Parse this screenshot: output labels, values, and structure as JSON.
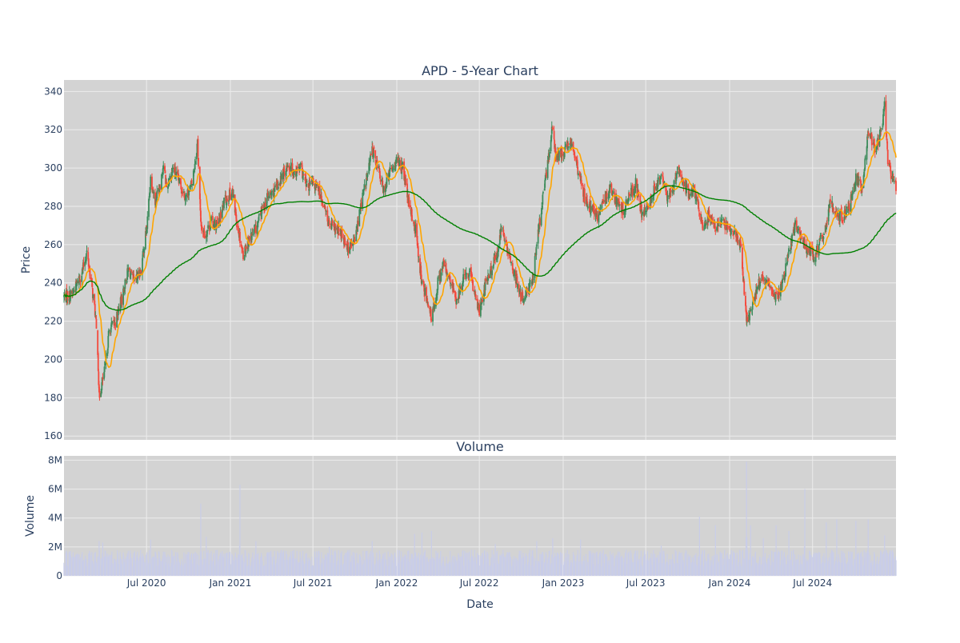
{
  "colors": {
    "plot_bg": "#d3d3d3",
    "grid": "#ececec",
    "up": "#3d8c5c",
    "down": "#f4493c",
    "ma_short": "#ffa500",
    "ma_long": "#008000",
    "volume": "#c9cde8",
    "text": "#2a3f5f"
  },
  "chart_data": [
    {
      "type": "candlestick",
      "title": "APD - 5-Year Chart",
      "ylabel": "Price",
      "ylim": [
        158,
        346
      ],
      "yticks": [
        160,
        180,
        200,
        220,
        240,
        260,
        280,
        300,
        320,
        340
      ],
      "x_range": [
        "2020-01-02",
        "2024-12-31"
      ],
      "grid": true,
      "series": [
        {
          "type": "candlestick",
          "style": "green up / red down"
        },
        {
          "type": "line",
          "color": "#ffa500"
        },
        {
          "type": "line",
          "color": "#008000"
        }
      ],
      "anchors": [
        [
          "2020-01-02",
          233
        ],
        [
          "2020-01-20",
          234
        ],
        [
          "2020-02-10",
          245
        ],
        [
          "2020-02-21",
          256
        ],
        [
          "2020-03-02",
          240
        ],
        [
          "2020-03-10",
          225
        ],
        [
          "2020-03-16",
          205
        ],
        [
          "2020-03-19",
          180
        ],
        [
          "2020-03-23",
          185
        ],
        [
          "2020-04-01",
          195
        ],
        [
          "2020-04-10",
          215
        ],
        [
          "2020-04-24",
          220
        ],
        [
          "2020-05-08",
          232
        ],
        [
          "2020-05-22",
          247
        ],
        [
          "2020-06-05",
          240
        ],
        [
          "2020-06-19",
          247
        ],
        [
          "2020-07-02",
          270
        ],
        [
          "2020-07-10",
          295
        ],
        [
          "2020-07-20",
          283
        ],
        [
          "2020-07-31",
          292
        ],
        [
          "2020-08-07",
          302
        ],
        [
          "2020-08-14",
          290
        ],
        [
          "2020-08-28",
          300
        ],
        [
          "2020-09-11",
          292
        ],
        [
          "2020-09-25",
          285
        ],
        [
          "2020-10-09",
          292
        ],
        [
          "2020-10-21",
          314
        ],
        [
          "2020-10-28",
          270
        ],
        [
          "2020-11-06",
          265
        ],
        [
          "2020-11-20",
          272
        ],
        [
          "2020-12-04",
          270
        ],
        [
          "2020-12-11",
          275
        ],
        [
          "2020-12-18",
          282
        ],
        [
          "2021-01-05",
          288
        ],
        [
          "2021-01-15",
          272
        ],
        [
          "2021-01-29",
          255
        ],
        [
          "2021-02-10",
          262
        ],
        [
          "2021-02-26",
          268
        ],
        [
          "2021-03-10",
          277
        ],
        [
          "2021-03-24",
          285
        ],
        [
          "2021-04-09",
          288
        ],
        [
          "2021-04-23",
          295
        ],
        [
          "2021-05-07",
          302
        ],
        [
          "2021-05-21",
          298
        ],
        [
          "2021-06-04",
          300
        ],
        [
          "2021-06-18",
          290
        ],
        [
          "2021-07-02",
          292
        ],
        [
          "2021-07-16",
          287
        ],
        [
          "2021-07-23",
          282
        ],
        [
          "2021-08-06",
          270
        ],
        [
          "2021-08-20",
          268
        ],
        [
          "2021-09-03",
          265
        ],
        [
          "2021-09-17",
          258
        ],
        [
          "2021-10-01",
          262
        ],
        [
          "2021-10-15",
          282
        ],
        [
          "2021-10-29",
          297
        ],
        [
          "2021-11-08",
          310
        ],
        [
          "2021-11-19",
          302
        ],
        [
          "2021-12-03",
          288
        ],
        [
          "2021-12-17",
          298
        ],
        [
          "2021-12-31",
          304
        ],
        [
          "2022-01-14",
          300
        ],
        [
          "2022-01-28",
          280
        ],
        [
          "2022-02-11",
          268
        ],
        [
          "2022-02-25",
          240
        ],
        [
          "2022-03-11",
          230
        ],
        [
          "2022-03-18",
          220
        ],
        [
          "2022-04-01",
          240
        ],
        [
          "2022-04-14",
          250
        ],
        [
          "2022-04-29",
          240
        ],
        [
          "2022-05-13",
          230
        ],
        [
          "2022-05-27",
          242
        ],
        [
          "2022-06-10",
          245
        ],
        [
          "2022-06-24",
          232
        ],
        [
          "2022-07-01",
          226
        ],
        [
          "2022-07-15",
          240
        ],
        [
          "2022-07-29",
          248
        ],
        [
          "2022-08-12",
          258
        ],
        [
          "2022-08-19",
          270
        ],
        [
          "2022-09-02",
          255
        ],
        [
          "2022-09-16",
          245
        ],
        [
          "2022-09-30",
          232
        ],
        [
          "2022-10-14",
          235
        ],
        [
          "2022-10-28",
          245
        ],
        [
          "2022-11-04",
          260
        ],
        [
          "2022-11-18",
          285
        ],
        [
          "2022-12-02",
          310
        ],
        [
          "2022-12-09",
          322
        ],
        [
          "2022-12-16",
          305
        ],
        [
          "2022-12-30",
          308
        ],
        [
          "2023-01-13",
          312
        ],
        [
          "2023-01-20",
          315
        ],
        [
          "2023-02-03",
          298
        ],
        [
          "2023-02-17",
          285
        ],
        [
          "2023-03-03",
          278
        ],
        [
          "2023-03-17",
          275
        ],
        [
          "2023-03-31",
          282
        ],
        [
          "2023-04-14",
          290
        ],
        [
          "2023-04-28",
          282
        ],
        [
          "2023-05-12",
          278
        ],
        [
          "2023-05-26",
          285
        ],
        [
          "2023-06-09",
          292
        ],
        [
          "2023-06-23",
          275
        ],
        [
          "2023-07-07",
          280
        ],
        [
          "2023-07-21",
          290
        ],
        [
          "2023-08-04",
          295
        ],
        [
          "2023-08-18",
          285
        ],
        [
          "2023-08-31",
          290
        ],
        [
          "2023-09-08",
          300
        ],
        [
          "2023-09-22",
          292
        ],
        [
          "2023-10-06",
          285
        ],
        [
          "2023-10-13",
          290
        ],
        [
          "2023-10-27",
          278
        ],
        [
          "2023-11-03",
          268
        ],
        [
          "2023-11-17",
          275
        ],
        [
          "2023-12-01",
          270
        ],
        [
          "2023-12-15",
          272
        ],
        [
          "2023-12-29",
          268
        ],
        [
          "2024-01-12",
          265
        ],
        [
          "2024-01-26",
          260
        ],
        [
          "2024-02-07",
          220
        ],
        [
          "2024-02-16",
          225
        ],
        [
          "2024-03-01",
          238
        ],
        [
          "2024-03-15",
          242
        ],
        [
          "2024-03-29",
          238
        ],
        [
          "2024-04-12",
          232
        ],
        [
          "2024-04-26",
          240
        ],
        [
          "2024-05-10",
          255
        ],
        [
          "2024-05-24",
          270
        ],
        [
          "2024-06-07",
          262
        ],
        [
          "2024-06-21",
          258
        ],
        [
          "2024-07-05",
          254
        ],
        [
          "2024-07-19",
          262
        ],
        [
          "2024-07-31",
          270
        ],
        [
          "2024-08-09",
          282
        ],
        [
          "2024-08-23",
          276
        ],
        [
          "2024-09-06",
          274
        ],
        [
          "2024-09-20",
          280
        ],
        [
          "2024-10-04",
          295
        ],
        [
          "2024-10-18",
          290
        ],
        [
          "2024-10-31",
          320
        ],
        [
          "2024-11-15",
          310
        ],
        [
          "2024-11-29",
          320
        ],
        [
          "2024-12-06",
          332
        ],
        [
          "2024-12-13",
          305
        ],
        [
          "2024-12-20",
          295
        ],
        [
          "2024-12-31",
          291
        ]
      ]
    },
    {
      "type": "bar",
      "title": "Volume",
      "xlabel": "Date",
      "ylabel": "Volume",
      "ylim": [
        0,
        8300000
      ],
      "yticks": [
        0,
        2000000,
        4000000,
        6000000,
        8000000
      ],
      "ytick_labels": [
        "0",
        "2M",
        "4M",
        "6M",
        "8M"
      ],
      "grid": true,
      "xticks": [
        {
          "date": "2020-07-01",
          "label": "Jul 2020"
        },
        {
          "date": "2021-01-01",
          "label": "Jan 2021"
        },
        {
          "date": "2021-07-01",
          "label": "Jul 2021"
        },
        {
          "date": "2022-01-01",
          "label": "Jan 2022"
        },
        {
          "date": "2022-07-01",
          "label": "Jul 2022"
        },
        {
          "date": "2023-01-01",
          "label": "Jan 2023"
        },
        {
          "date": "2023-07-01",
          "label": "Jul 2023"
        },
        {
          "date": "2024-01-01",
          "label": "Jan 2024"
        },
        {
          "date": "2024-07-01",
          "label": "Jul 2024"
        }
      ],
      "baseline": 1200000,
      "spikes": [
        [
          "2020-03-19",
          2400000
        ],
        [
          "2020-03-27",
          2300000
        ],
        [
          "2020-07-10",
          2500000
        ],
        [
          "2020-10-28",
          5000000
        ],
        [
          "2020-11-09",
          2700000
        ],
        [
          "2021-01-22",
          6300000
        ],
        [
          "2021-02-26",
          2400000
        ],
        [
          "2021-08-06",
          2000000
        ],
        [
          "2021-11-08",
          2400000
        ],
        [
          "2022-02-09",
          2900000
        ],
        [
          "2022-02-25",
          3000000
        ],
        [
          "2022-03-18",
          3100000
        ],
        [
          "2022-08-05",
          2200000
        ],
        [
          "2022-11-04",
          2400000
        ],
        [
          "2022-12-09",
          2600000
        ],
        [
          "2023-02-08",
          2500000
        ],
        [
          "2023-08-04",
          2100000
        ],
        [
          "2023-10-27",
          4100000
        ],
        [
          "2023-12-01",
          3500000
        ],
        [
          "2024-02-07",
          7900000
        ],
        [
          "2024-02-16",
          3500000
        ],
        [
          "2024-03-15",
          2600000
        ],
        [
          "2024-04-12",
          3500000
        ],
        [
          "2024-05-10",
          3100000
        ],
        [
          "2024-06-14",
          6000000
        ],
        [
          "2024-07-31",
          3700000
        ],
        [
          "2024-08-23",
          3900000
        ],
        [
          "2024-10-04",
          3800000
        ],
        [
          "2024-10-31",
          3900000
        ],
        [
          "2024-12-06",
          2800000
        ]
      ]
    }
  ]
}
